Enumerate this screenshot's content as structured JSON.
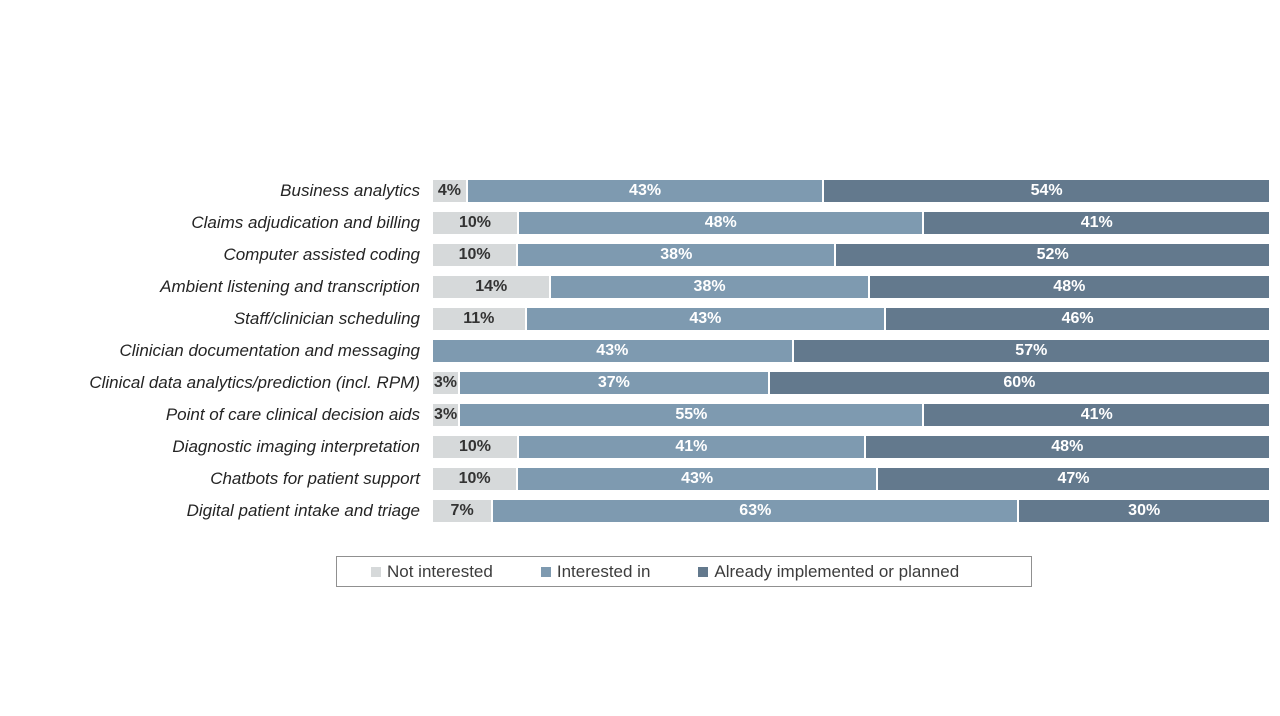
{
  "chart_data": {
    "type": "bar",
    "orientation": "horizontal-stacked",
    "title": "",
    "value_suffix": "%",
    "axis_range": [
      0,
      100
    ],
    "grid": false,
    "legend_position": "bottom",
    "categories": [
      "Business analytics",
      "Claims adjudication and billing",
      "Computer assisted coding",
      "Ambient listening and transcription",
      "Staff/clinician scheduling",
      "Clinician documentation and messaging",
      "Clinical data analytics/prediction (incl. RPM)",
      "Point of care clinical decision aids",
      "Diagnostic imaging interpretation",
      "Chatbots for patient support",
      "Digital patient intake and triage"
    ],
    "series": [
      {
        "name": "Not interested",
        "color": "#d6d9da",
        "text_color": "#333333",
        "values": [
          4,
          10,
          10,
          14,
          11,
          0,
          3,
          3,
          10,
          10,
          7
        ]
      },
      {
        "name": "Interested in",
        "color": "#7e9ab0",
        "text_color": "#ffffff",
        "values": [
          43,
          48,
          38,
          38,
          43,
          43,
          37,
          55,
          41,
          43,
          63
        ]
      },
      {
        "name": "Already implemented or planned",
        "color": "#63798d",
        "text_color": "#ffffff",
        "values": [
          54,
          41,
          52,
          48,
          46,
          57,
          60,
          41,
          48,
          47,
          30
        ]
      }
    ]
  },
  "legend": {
    "items": [
      {
        "label": "Not interested",
        "color": "#d6d9da"
      },
      {
        "label": "Interested in",
        "color": "#7e9ab0"
      },
      {
        "label": "Already implemented or planned",
        "color": "#63798d"
      }
    ]
  }
}
